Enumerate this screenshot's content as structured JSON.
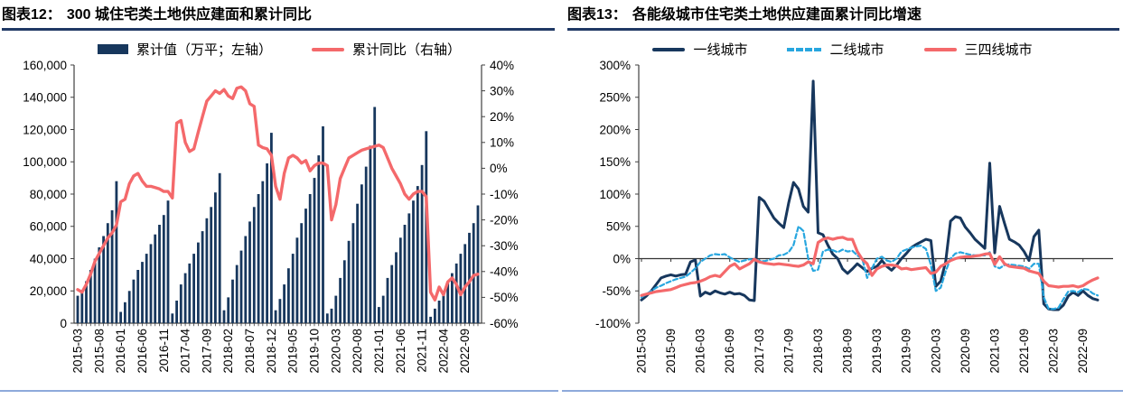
{
  "figures": [
    {
      "title_label": "图表12：",
      "title": "300 城住宅类土地供应建面和累计同比",
      "legend": [
        {
          "swatch": "rect",
          "color": "#17375D",
          "label": "累计值（万平；左轴）"
        },
        {
          "swatch": "line",
          "color": "#F4696B",
          "label": "累计同比（右轴）"
        }
      ],
      "chart_data": {
        "type": "bar",
        "x_start": "2015-03",
        "x_end": "2022-12",
        "x_tick_labels": [
          "2015-03",
          "2015-08",
          "2016-01",
          "2016-06",
          "2016-11",
          "2017-04",
          "2017-09",
          "2018-02",
          "2018-07",
          "2018-12",
          "2019-05",
          "2019-10",
          "2020-03",
          "2020-08",
          "2021-01",
          "2021-06",
          "2021-11",
          "2022-04",
          "2022-09"
        ],
        "left_axis": {
          "min": 0,
          "max": 160000,
          "step": 20000,
          "tick_labels": [
            "160,000",
            "140,000",
            "120,000",
            "100,000",
            "80,000",
            "60,000",
            "40,000",
            "20,000",
            "0"
          ]
        },
        "right_axis": {
          "min": -60,
          "max": 40,
          "step": 10,
          "tick_labels": [
            "40%",
            "30%",
            "20%",
            "10%",
            "0%",
            "-10%",
            "-20%",
            "-30%",
            "-40%",
            "-50%",
            "-60%"
          ]
        },
        "bars_name": "累计值（万平；左轴）",
        "bars": [
          17000,
          20500,
          26000,
          33000,
          40000,
          47000,
          54000,
          62000,
          70000,
          88000,
          7000,
          13000,
          20000,
          27000,
          33000,
          38000,
          43000,
          49000,
          55000,
          61000,
          67000,
          76000,
          6000,
          14000,
          24000,
          31000,
          37000,
          43000,
          50000,
          57000,
          65000,
          72000,
          81000,
          93000,
          8000,
          16000,
          27000,
          36000,
          45000,
          54000,
          63000,
          72000,
          80000,
          88000,
          99000,
          118000,
          8000,
          15000,
          24000,
          34000,
          43000,
          53000,
          62000,
          71000,
          80000,
          90000,
          104000,
          122000,
          6000,
          9000,
          17000,
          28000,
          39000,
          51000,
          62000,
          74000,
          86000,
          97000,
          110000,
          134000,
          10000,
          17000,
          28000,
          36000,
          44000,
          53000,
          61000,
          68000,
          76000,
          85000,
          98000,
          119000,
          4000,
          9000,
          14000,
          19000,
          25000,
          31000,
          37000,
          43000,
          49000,
          56000,
          62000,
          73000
        ],
        "line_name": "累计同比（右轴）",
        "line": [
          -47,
          -48,
          -45,
          -41,
          -36,
          -33,
          -30,
          -27,
          -25,
          -22,
          -13,
          -12,
          -6,
          -3,
          -2,
          -5,
          -7,
          -7,
          -7.5,
          -8,
          -9,
          -9,
          -11.5,
          17.5,
          18.5,
          10,
          6.5,
          7.5,
          14,
          20,
          26,
          28,
          30,
          29,
          30.5,
          28,
          27,
          31,
          31.5,
          30,
          25,
          24,
          9,
          8,
          7.5,
          5,
          -7,
          -12,
          -2,
          4,
          5,
          4,
          2,
          3,
          -1,
          1,
          2,
          2,
          1,
          -20,
          -14,
          -4,
          0,
          4,
          5,
          6,
          7,
          7.5,
          8,
          8.5,
          9,
          8,
          4,
          0,
          -3,
          -6,
          -10,
          -12,
          -10,
          -9,
          -9,
          -11,
          -48,
          -51,
          -46,
          -49,
          -44,
          -42.5,
          -45,
          -49,
          -46,
          -44,
          -41.5,
          -41
        ]
      }
    },
    {
      "title_label": "图表13：",
      "title": "各能级城市住宅类土地供应建面累计同比增速",
      "legend": [
        {
          "swatch": "line",
          "color": "#17375D",
          "label": "一线城市"
        },
        {
          "swatch": "dash",
          "color": "#27A6DF",
          "label": "二线城市"
        },
        {
          "swatch": "line",
          "color": "#F4696B",
          "label": "三四线城市"
        }
      ],
      "chart_data": {
        "type": "line",
        "x_start": "2015-03",
        "x_end": "2022-12",
        "x_tick_labels": [
          "2015-03",
          "2015-09",
          "2016-03",
          "2016-09",
          "2017-03",
          "2017-09",
          "2018-03",
          "2018-09",
          "2019-03",
          "2019-09",
          "2020-03",
          "2020-09",
          "2021-03",
          "2021-09",
          "2022-03",
          "2022-09"
        ],
        "y_axis": {
          "min": -100,
          "max": 300,
          "step": 50,
          "tick_labels": [
            "300%",
            "250%",
            "200%",
            "150%",
            "100%",
            "50%",
            "0%",
            "-50%",
            "-100%"
          ]
        },
        "series": [
          {
            "name": "一线城市",
            "color": "#17375D",
            "dash": "",
            "values": [
              -64,
              -58,
              -50,
              -40,
              -30,
              -27,
              -25,
              -27,
              -25,
              -24,
              -5,
              -2,
              -58,
              -52,
              -55,
              -50,
              -53,
              -55,
              -52,
              -55,
              -54,
              -57,
              -64,
              -65,
              95,
              89,
              76,
              63,
              55,
              48,
              86,
              118,
              108,
              81,
              72,
              275,
              40,
              37,
              21,
              7,
              0,
              -16,
              -23,
              -16,
              -8,
              -14,
              -20,
              -15,
              -12,
              -3,
              -12,
              -18,
              -10,
              0,
              8,
              17,
              22,
              26,
              30,
              28,
              -43,
              -35,
              -5,
              58,
              65,
              63,
              49,
              40,
              30,
              23,
              16,
              148,
              9,
              81,
              55,
              30,
              26,
              21,
              11,
              -3,
              34,
              44,
              -70,
              -78,
              -79,
              -79,
              -72,
              -58,
              -52,
              -57,
              -50,
              -57,
              -62,
              -64
            ]
          },
          {
            "name": "二线城市",
            "color": "#27A6DF",
            "dash": "5,3",
            "values": [
              -60,
              -55,
              -50,
              -45,
              -42,
              -38,
              -35,
              -32,
              -30,
              -28,
              -22,
              -15,
              -5,
              0,
              5,
              7,
              6,
              7,
              2,
              -2,
              -5,
              -3,
              -1,
              -2,
              -3,
              -4,
              -2,
              0,
              5,
              6,
              10,
              21,
              50,
              43,
              0,
              -19,
              -17,
              11,
              14,
              13,
              10,
              14,
              11,
              12,
              5,
              0,
              -30,
              -15,
              0,
              3,
              -3,
              -5,
              0,
              11,
              14,
              17,
              19,
              20,
              15,
              -10,
              -50,
              -45,
              -20,
              0,
              8,
              10,
              8,
              6,
              5,
              5,
              5,
              10,
              -12,
              -15,
              -10,
              -9,
              -10,
              -11,
              -12,
              -16,
              -8,
              -8,
              -60,
              -78,
              -78,
              -76,
              -63,
              -51,
              -50,
              -52,
              -47,
              -48,
              -54,
              -57
            ]
          },
          {
            "name": "三四线城市",
            "color": "#F4696B",
            "dash": "",
            "values": [
              -57,
              -55,
              -53,
              -51,
              -50,
              -49,
              -48,
              -45,
              -42,
              -40,
              -38,
              -37,
              -35,
              -32,
              -28,
              -26,
              -28,
              -20,
              -12,
              -8,
              -16,
              -12,
              -8,
              -1,
              -5,
              -7,
              -8,
              -9,
              -8,
              -9,
              -10,
              -11,
              -12,
              -10,
              -5,
              -8,
              25,
              30,
              32,
              30,
              32,
              33,
              30,
              30,
              11,
              -1,
              -8,
              -26,
              -16,
              -12,
              -10,
              -10,
              -11,
              -16,
              -15,
              -17,
              -16,
              -15,
              -14,
              -23,
              -21,
              -12,
              -8,
              -3,
              0,
              2,
              3,
              3,
              4,
              5,
              7,
              8,
              -9,
              3,
              -8,
              -12,
              -13,
              -14,
              -15,
              -19,
              -21,
              -23,
              -35,
              -42,
              -43,
              -44,
              -43,
              -43,
              -42,
              -44,
              -42,
              -37,
              -33,
              -30
            ]
          }
        ]
      }
    }
  ]
}
